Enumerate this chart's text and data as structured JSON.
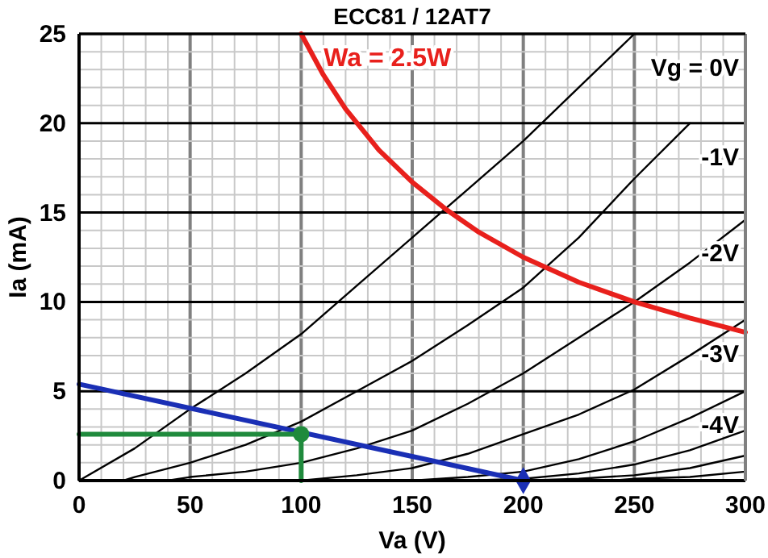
{
  "chart_data": {
    "type": "line",
    "title": "ECC81 / 12AT7",
    "xlabel": "Va (V)",
    "ylabel": "Ia (mA)",
    "xlim": [
      0,
      300
    ],
    "ylim": [
      0,
      25
    ],
    "xticks": [
      0,
      {
        "value": 10,
        "label": null
      },
      {
        "value": 20,
        "label": null
      },
      {
        "value": 30,
        "label": null
      },
      {
        "value": 40,
        "label": null
      },
      50,
      {
        "value": 60,
        "label": null
      },
      {
        "value": 70,
        "label": null
      },
      {
        "value": 80,
        "label": null
      },
      {
        "value": 90,
        "label": null
      },
      100,
      {
        "value": 110,
        "label": null
      },
      {
        "value": 120,
        "label": null
      },
      {
        "value": 130,
        "label": null
      },
      {
        "value": 140,
        "label": null
      },
      150,
      {
        "value": 160,
        "label": null
      },
      {
        "value": 170,
        "label": null
      },
      {
        "value": 180,
        "label": null
      },
      {
        "value": 190,
        "label": null
      },
      200,
      {
        "value": 210,
        "label": null
      },
      {
        "value": 220,
        "label": null
      },
      {
        "value": 230,
        "label": null
      },
      {
        "value": 240,
        "label": null
      },
      250,
      {
        "value": 260,
        "label": null
      },
      {
        "value": 270,
        "label": null
      },
      {
        "value": 280,
        "label": null
      },
      {
        "value": 290,
        "label": null
      },
      300
    ],
    "yticks": [
      0,
      {
        "value": 1,
        "label": null
      },
      {
        "value": 2,
        "label": null
      },
      {
        "value": 3,
        "label": null
      },
      {
        "value": 4,
        "label": null
      },
      5,
      {
        "value": 6,
        "label": null
      },
      {
        "value": 7,
        "label": null
      },
      {
        "value": 8,
        "label": null
      },
      {
        "value": 9,
        "label": null
      },
      10,
      {
        "value": 11,
        "label": null
      },
      {
        "value": 12,
        "label": null
      },
      {
        "value": 13,
        "label": null
      },
      {
        "value": 14,
        "label": null
      },
      15,
      {
        "value": 16,
        "label": null
      },
      {
        "value": 17,
        "label": null
      },
      {
        "value": 18,
        "label": null
      },
      {
        "value": 19,
        "label": null
      },
      20,
      {
        "value": 21,
        "label": null
      },
      {
        "value": 22,
        "label": null
      },
      {
        "value": 23,
        "label": null
      },
      {
        "value": 24,
        "label": null
      },
      25
    ],
    "grid": true,
    "marker": "none",
    "line_style": "solid",
    "series": [
      {
        "name": "Vg = 0V",
        "color": "#000000",
        "x": [
          0,
          25,
          50,
          75,
          100,
          125,
          150,
          175,
          200,
          225,
          250
        ],
        "values": [
          0,
          1.8,
          4.0,
          6.0,
          8.2,
          10.9,
          13.6,
          16.3,
          19.0,
          22.0,
          25
        ]
      },
      {
        "name": "-1V",
        "color": "#000000",
        "x": [
          20,
          25,
          50,
          75,
          100,
          125,
          150,
          175,
          200,
          225,
          250,
          275
        ],
        "values": [
          0,
          0.2,
          1.0,
          2.0,
          3.3,
          5.0,
          6.7,
          8.7,
          10.8,
          13.6,
          16.9,
          20
        ]
      },
      {
        "name": "-2V",
        "color": "#000000",
        "x": [
          40,
          50,
          75,
          100,
          125,
          150,
          175,
          200,
          225,
          250,
          275,
          300
        ],
        "values": [
          0,
          0.2,
          0.5,
          1.0,
          1.8,
          2.8,
          4.3,
          6.0,
          8.0,
          10.0,
          12.2,
          14.6
        ]
      },
      {
        "name": "-3V",
        "color": "#000000",
        "x": [
          100,
          125,
          150,
          175,
          200,
          225,
          250,
          275,
          300
        ],
        "values": [
          0,
          0.3,
          0.7,
          1.5,
          2.6,
          3.7,
          5.1,
          7.0,
          9.0
        ]
      },
      {
        "name": "-4V",
        "color": "#000000",
        "x": [
          150,
          175,
          200,
          225,
          250,
          275,
          300
        ],
        "values": [
          0,
          0.2,
          0.5,
          1.2,
          2.2,
          3.5,
          5.0
        ]
      },
      {
        "color": "#000000",
        "x": [
          175,
          200,
          225,
          250,
          275,
          300
        ],
        "values": [
          0,
          0.1,
          0.4,
          0.9,
          1.7,
          2.8
        ]
      },
      {
        "color": "#000000",
        "x": [
          200,
          225,
          250,
          275,
          300
        ],
        "values": [
          0,
          0.1,
          0.3,
          0.7,
          1.4
        ]
      },
      {
        "color": "#000000",
        "x": [
          240,
          250,
          275,
          300
        ],
        "values": [
          0,
          0.1,
          0.2,
          0.5
        ]
      },
      {
        "name": "Wa = 2.5W",
        "color": "#e8201c",
        "x": [
          100,
          110,
          120,
          135,
          150,
          165,
          180,
          200,
          225,
          250,
          275,
          300
        ],
        "values": [
          25,
          22.7,
          20.8,
          18.5,
          16.7,
          15.2,
          13.9,
          12.5,
          11.1,
          10.0,
          9.1,
          8.3
        ]
      },
      {
        "color": "#1a2fb5",
        "x": [
          0,
          200
        ],
        "values": [
          5.4,
          0
        ]
      },
      {
        "color": "#1f8a3c",
        "x": [
          0,
          100,
          100
        ],
        "values": [
          2.6,
          2.6,
          0
        ]
      },
      {
        "type": "scatter",
        "marker": "diamond",
        "color": "#1a2fb5",
        "x": [
          200
        ],
        "values": [
          0
        ]
      },
      {
        "type": "scatter",
        "marker": "circle",
        "color": "#1f8a3c",
        "x": [
          100
        ],
        "values": [
          2.6
        ]
      }
    ]
  }
}
